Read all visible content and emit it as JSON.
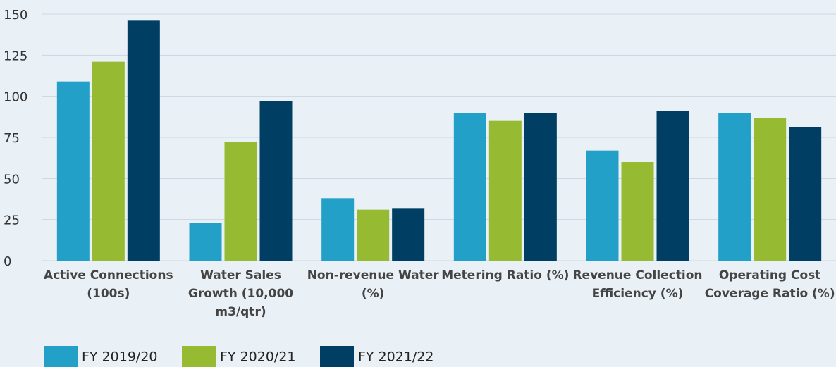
{
  "chart_data": {
    "type": "bar",
    "categories": [
      "Active Connections (100s)",
      "Water Sales Growth (10,000 m3/qtr)",
      "Non-revenue Water (%)",
      "Metering Ratio (%)",
      "Revenue Collection Efficiency (%)",
      "Operating Cost Coverage Ratio (%)"
    ],
    "series": [
      {
        "name": "FY 2019/20",
        "color": "#22a0c8",
        "values": [
          109,
          23,
          38,
          90,
          67,
          90
        ]
      },
      {
        "name": "FY 2020/21",
        "color": "#96bb33",
        "values": [
          121,
          72,
          31,
          85,
          60,
          87
        ]
      },
      {
        "name": "FY 2021/22",
        "color": "#003e63",
        "values": [
          146,
          97,
          32,
          90,
          91,
          81
        ]
      }
    ],
    "ylim": [
      0,
      150
    ],
    "yticks": [
      0,
      25,
      50,
      75,
      100,
      125,
      150
    ],
    "grid": true,
    "legend": "bottom"
  }
}
